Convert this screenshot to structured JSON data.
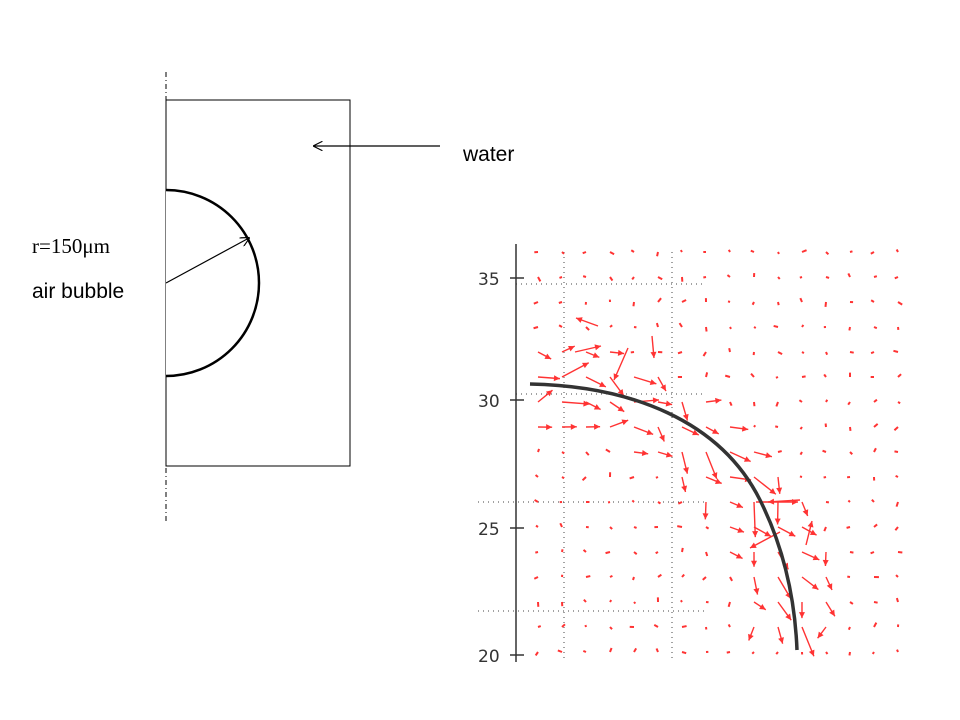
{
  "schematic": {
    "water_label": "water",
    "radius_label": "r=150μm",
    "bubble_label": "air bubble"
  },
  "vector_plot": {
    "y_ticks": [
      "35",
      "30",
      "25",
      "20"
    ],
    "arrow_color": "#ff3333",
    "interface_color": "#333333"
  }
}
